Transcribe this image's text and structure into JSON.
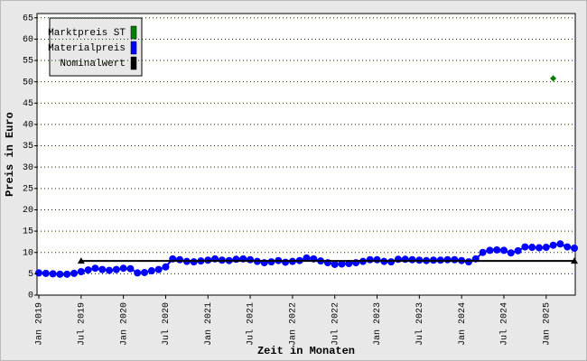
{
  "chart_data": {
    "type": "line",
    "xlabel": "Zeit in Monaten",
    "ylabel": "Preis in Euro",
    "ylim": [
      0,
      66
    ],
    "yticks": [
      0,
      5,
      10,
      15,
      20,
      25,
      30,
      35,
      40,
      45,
      50,
      55,
      60,
      65
    ],
    "xlim": [
      "2019-01",
      "2025-05"
    ],
    "xticks": [
      {
        "value": "2019-01",
        "label": "Jan 2019"
      },
      {
        "value": "2019-07",
        "label": "Jul 2019"
      },
      {
        "value": "2020-01",
        "label": "Jan 2020"
      },
      {
        "value": "2020-07",
        "label": "Jul 2020"
      },
      {
        "value": "2021-01",
        "label": "Jan 2021"
      },
      {
        "value": "2021-07",
        "label": "Jul 2021"
      },
      {
        "value": "2022-01",
        "label": "Jan 2022"
      },
      {
        "value": "2022-07",
        "label": "Jul 2022"
      },
      {
        "value": "2023-01",
        "label": "Jan 2023"
      },
      {
        "value": "2023-07",
        "label": "Jul 2023"
      },
      {
        "value": "2024-01",
        "label": "Jan 2024"
      },
      {
        "value": "2024-07",
        "label": "Jul 2024"
      },
      {
        "value": "2025-01",
        "label": "Jan 2025"
      }
    ],
    "grid": true,
    "legend": "top-left",
    "series": [
      {
        "name": "Marktpreis ST",
        "color": "#008000",
        "marker": "diamond",
        "line": false,
        "x": [
          "2025-02"
        ],
        "values": [
          50.8
        ]
      },
      {
        "name": "Materialpreis",
        "color": "#0000ff",
        "marker": "circle",
        "line": true,
        "x": [
          "2019-01",
          "2019-02",
          "2019-03",
          "2019-04",
          "2019-05",
          "2019-06",
          "2019-07",
          "2019-08",
          "2019-09",
          "2019-10",
          "2019-11",
          "2019-12",
          "2020-01",
          "2020-02",
          "2020-03",
          "2020-04",
          "2020-05",
          "2020-06",
          "2020-07",
          "2020-08",
          "2020-09",
          "2020-10",
          "2020-11",
          "2020-12",
          "2021-01",
          "2021-02",
          "2021-03",
          "2021-04",
          "2021-05",
          "2021-06",
          "2021-07",
          "2021-08",
          "2021-09",
          "2021-10",
          "2021-11",
          "2021-12",
          "2022-01",
          "2022-02",
          "2022-03",
          "2022-04",
          "2022-05",
          "2022-06",
          "2022-07",
          "2022-08",
          "2022-09",
          "2022-10",
          "2022-11",
          "2022-12",
          "2023-01",
          "2023-02",
          "2023-03",
          "2023-04",
          "2023-05",
          "2023-06",
          "2023-07",
          "2023-08",
          "2023-09",
          "2023-10",
          "2023-11",
          "2023-12",
          "2024-01",
          "2024-02",
          "2024-03",
          "2024-04",
          "2024-05",
          "2024-06",
          "2024-07",
          "2024-08",
          "2024-09",
          "2024-10",
          "2024-11",
          "2024-12",
          "2025-01",
          "2025-02",
          "2025-03",
          "2025-04",
          "2025-05"
        ],
        "values": [
          5.2,
          5.1,
          5.0,
          4.9,
          4.9,
          5.1,
          5.5,
          5.9,
          6.3,
          6.0,
          5.8,
          6.0,
          6.3,
          6.2,
          5.2,
          5.3,
          5.7,
          6.0,
          6.6,
          8.5,
          8.3,
          7.9,
          7.8,
          8.0,
          8.2,
          8.5,
          8.2,
          8.1,
          8.4,
          8.5,
          8.3,
          7.9,
          7.6,
          7.8,
          8.1,
          7.7,
          7.9,
          8.1,
          8.7,
          8.5,
          8.0,
          7.6,
          7.2,
          7.3,
          7.4,
          7.6,
          7.9,
          8.3,
          8.3,
          7.9,
          7.8,
          8.4,
          8.4,
          8.3,
          8.2,
          8.1,
          8.2,
          8.2,
          8.3,
          8.3,
          8.1,
          7.8,
          8.5,
          10.0,
          10.5,
          10.6,
          10.5,
          9.9,
          10.4,
          11.3,
          11.2,
          11.1,
          11.2,
          11.7,
          12.0,
          11.3,
          11.0
        ]
      },
      {
        "name": "Nominalwert",
        "color": "#000000",
        "marker": "triangle",
        "line": true,
        "x": [
          "2019-07",
          "2025-05"
        ],
        "values": [
          8,
          8
        ]
      }
    ]
  }
}
